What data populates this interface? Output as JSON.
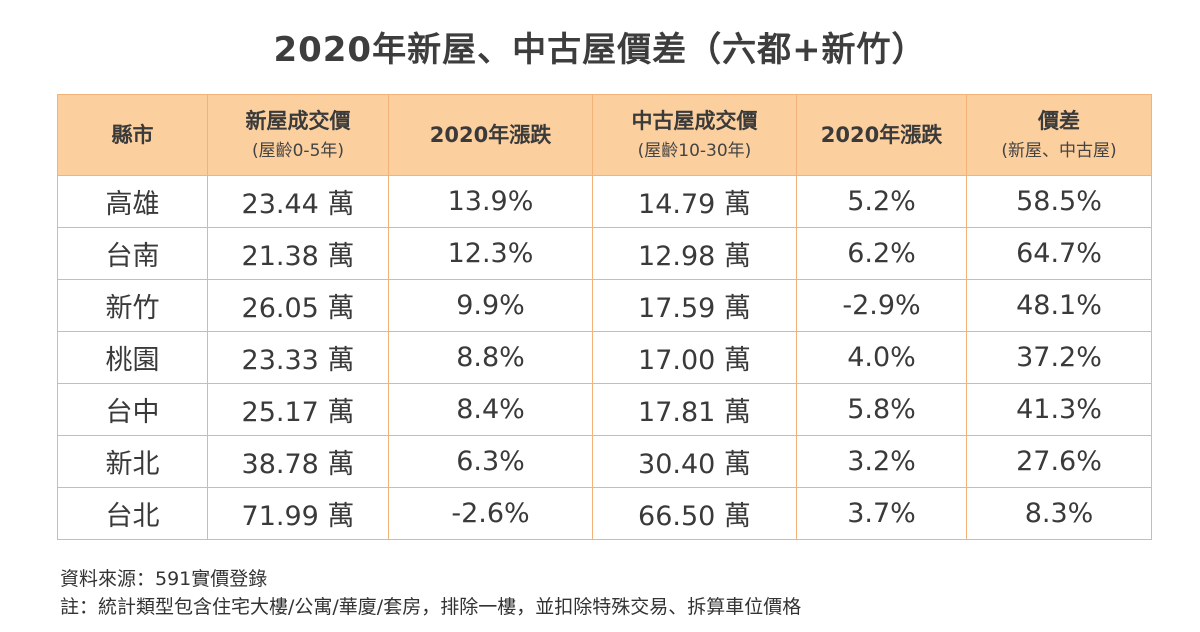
{
  "title": "2020年新屋、中古屋價差（六都+新竹）",
  "headers": [
    {
      "main": "縣市",
      "sub": ""
    },
    {
      "main": "新屋成交價",
      "sub": "(屋齡0-5年)"
    },
    {
      "main": "2020年漲跌",
      "sub": ""
    },
    {
      "main": "中古屋成交價",
      "sub": "(屋齡10-30年)"
    },
    {
      "main": "2020年漲跌",
      "sub": ""
    },
    {
      "main": "價差",
      "sub": "(新屋、中古屋)"
    }
  ],
  "rows": [
    {
      "city": "高雄",
      "new_price": "23.44 萬",
      "new_change": "13.9%",
      "used_price": "14.79 萬",
      "used_change": "5.2%",
      "gap": "58.5%"
    },
    {
      "city": "台南",
      "new_price": "21.38 萬",
      "new_change": "12.3%",
      "used_price": "12.98 萬",
      "used_change": "6.2%",
      "gap": "64.7%"
    },
    {
      "city": "新竹",
      "new_price": "26.05 萬",
      "new_change": "9.9%",
      "used_price": "17.59 萬",
      "used_change": "-2.9%",
      "gap": "48.1%"
    },
    {
      "city": "桃園",
      "new_price": "23.33 萬",
      "new_change": "8.8%",
      "used_price": "17.00 萬",
      "used_change": "4.0%",
      "gap": "37.2%"
    },
    {
      "city": "台中",
      "new_price": "25.17 萬",
      "new_change": "8.4%",
      "used_price": "17.81 萬",
      "used_change": "5.8%",
      "gap": "41.3%"
    },
    {
      "city": "新北",
      "new_price": "38.78 萬",
      "new_change": "6.3%",
      "used_price": "30.40 萬",
      "used_change": "3.2%",
      "gap": "27.6%"
    },
    {
      "city": "台北",
      "new_price": "71.99 萬",
      "new_change": "-2.6%",
      "used_price": "66.50 萬",
      "used_change": "3.7%",
      "gap": "8.3%"
    }
  ],
  "footer": {
    "source": "資料來源：591實價登錄",
    "note": "註：統計類型包含住宅大樓/公寓/華廈/套房，排除一樓，並扣除特殊交易、拆算車位價格"
  },
  "colors": {
    "header_bg": "#fbcf9e",
    "border": "#f2b27a"
  },
  "chart_data": {
    "type": "table",
    "title": "2020年新屋、中古屋價差（六都+新竹）",
    "columns": [
      "縣市",
      "新屋成交價 (屋齡0-5年)",
      "2020年漲跌",
      "中古屋成交價 (屋齡10-30年)",
      "2020年漲跌",
      "價差 (新屋、中古屋)"
    ],
    "categories": [
      "高雄",
      "台南",
      "新竹",
      "桃園",
      "台中",
      "新北",
      "台北"
    ],
    "series": [
      {
        "name": "新屋成交價",
        "values": [
          23.44,
          21.38,
          26.05,
          23.33,
          25.17,
          38.78,
          71.99
        ]
      },
      {
        "name": "2020年漲跌",
        "values": [
          13.9,
          12.3,
          9.9,
          8.8,
          8.4,
          6.3,
          -2.6
        ]
      },
      {
        "name": "中古屋成交價",
        "values": [
          14.79,
          12.98,
          17.59,
          17.0,
          17.81,
          30.4,
          66.5
        ]
      },
      {
        "name": "2020年漲跌",
        "values": [
          5.2,
          6.2,
          -2.9,
          4.0,
          5.8,
          3.2,
          3.7
        ]
      },
      {
        "name": "價差",
        "values": [
          58.5,
          64.7,
          48.1,
          37.2,
          41.3,
          27.6,
          8.3
        ]
      }
    ]
  }
}
